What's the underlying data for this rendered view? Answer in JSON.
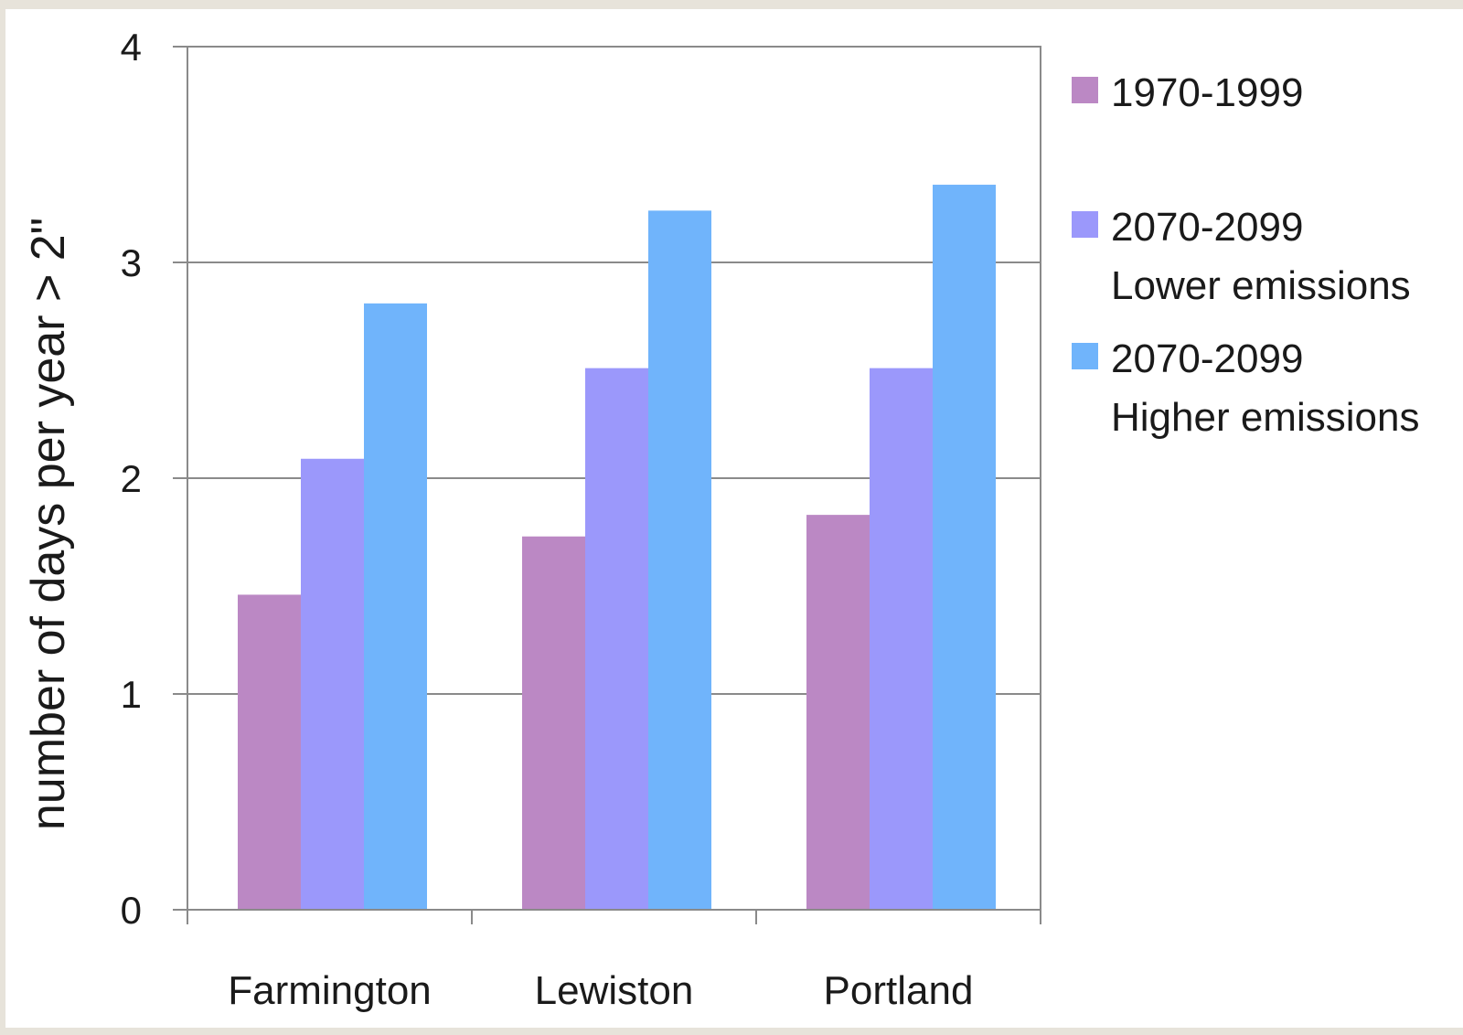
{
  "chart_data": {
    "type": "bar",
    "title": "",
    "xlabel": "",
    "ylabel": "number of days per year > 2\"",
    "categories": [
      "Farmington",
      "Lewiston",
      "Portland"
    ],
    "series": [
      {
        "name": "1970-1999",
        "name_lines": [
          "1970-1999"
        ],
        "color": "#bb88c4",
        "values": [
          1.46,
          1.73,
          1.83
        ]
      },
      {
        "name": "2070-2099 Lower emissions",
        "name_lines": [
          "2070-2099",
          "Lower emissions"
        ],
        "color": "#9b98fb",
        "values": [
          2.09,
          2.51,
          2.51
        ]
      },
      {
        "name": "2070-2099 Higher emissions",
        "name_lines": [
          "2070-2099",
          "Higher emissions"
        ],
        "color": "#70b4fb",
        "values": [
          2.81,
          3.24,
          3.36
        ]
      }
    ],
    "ylim": [
      0,
      4
    ],
    "yticks": [
      0,
      1,
      2,
      3,
      4
    ],
    "grid": true,
    "legend_position": "right"
  },
  "colors": {
    "page_border": "#e7e3da",
    "gridline": "#8a8a8a",
    "axis": "#8a8a8a"
  }
}
